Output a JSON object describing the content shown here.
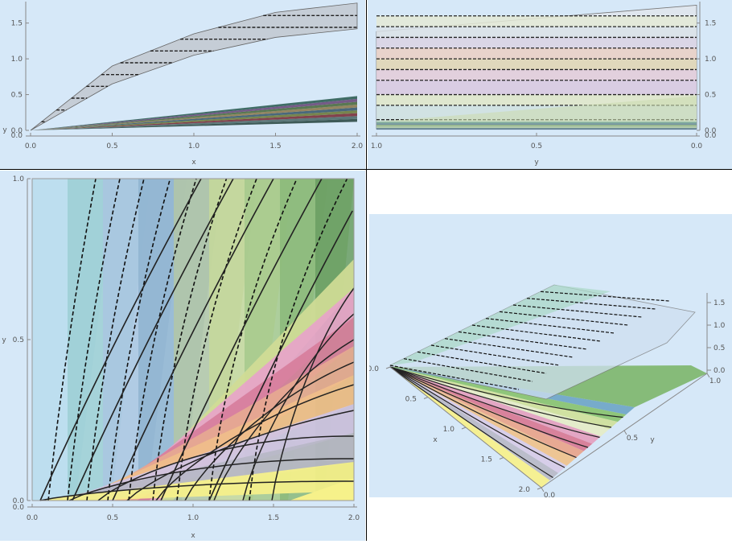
{
  "chart_data": [
    {
      "type": "area",
      "panel": "top-left",
      "xlabel": "x",
      "ylabel": "y",
      "xlim": [
        0,
        2
      ],
      "ylim": [
        0,
        1.8
      ],
      "x_ticks": [
        "0.0",
        "0.5",
        "1.0",
        "1.5",
        "2.0"
      ],
      "y_ticks": [
        "0.0",
        "0.5",
        "1.0",
        "1.5"
      ],
      "y_origin_label": "0.0",
      "upper_band": {
        "x": [
          0,
          0.5,
          1.0,
          1.5,
          2.0
        ],
        "y_high": [
          0,
          0.9,
          1.35,
          1.65,
          1.78
        ],
        "y_low": [
          0,
          0.65,
          1.05,
          1.3,
          1.42
        ]
      },
      "lower_band": {
        "x": [
          0,
          2.0
        ],
        "y_high": [
          0,
          0.48
        ],
        "y_low": [
          0,
          0.12
        ]
      }
    },
    {
      "type": "area",
      "panel": "top-right",
      "xlabel": "y",
      "ylabel": "",
      "xlim": [
        1.0,
        0.0
      ],
      "ylim": [
        0,
        1.8
      ],
      "x_ticks": [
        "1.0",
        "0.5",
        "0.0"
      ],
      "y_ticks": [
        "0.0",
        "0.5",
        "1.0",
        "1.5"
      ],
      "y_origin_label": "0.0",
      "band_levels": [
        1.6,
        1.45,
        1.3,
        1.15,
        1.0,
        0.85,
        0.7,
        0.5,
        0.35,
        0.15
      ],
      "top_edge": {
        "y_left": 1.38,
        "y_right": 1.75
      }
    },
    {
      "type": "heatmap",
      "panel": "bottom-left",
      "xlabel": "x",
      "ylabel": "y",
      "xlim": [
        0,
        2
      ],
      "ylim": [
        0,
        1
      ],
      "x_ticks": [
        "0.0",
        "0.5",
        "1.0",
        "1.5",
        "2.0"
      ],
      "y_ticks": [
        "0.0",
        "0.5",
        "1.0"
      ],
      "y_origin_label": "0.0",
      "dashed_contour_starts": [
        0.1,
        0.22,
        0.34,
        0.47,
        0.6,
        0.75,
        0.9,
        1.1,
        1.35
      ],
      "solid_contour_ends": [
        0.06,
        0.13,
        0.2,
        0.28,
        0.36,
        0.43,
        0.5,
        0.58,
        0.66
      ]
    },
    {
      "type": "area",
      "panel": "bottom-right",
      "xlabel": "x",
      "ylabel": "y",
      "x_ticks": [
        "0.0",
        "0.5",
        "1.0",
        "1.5",
        "2.0"
      ],
      "y_ticks": [
        "0.0",
        "0.5",
        "1.0"
      ],
      "z_ticks": [
        "0.0",
        "0.5",
        "1.0",
        "1.5"
      ]
    }
  ]
}
